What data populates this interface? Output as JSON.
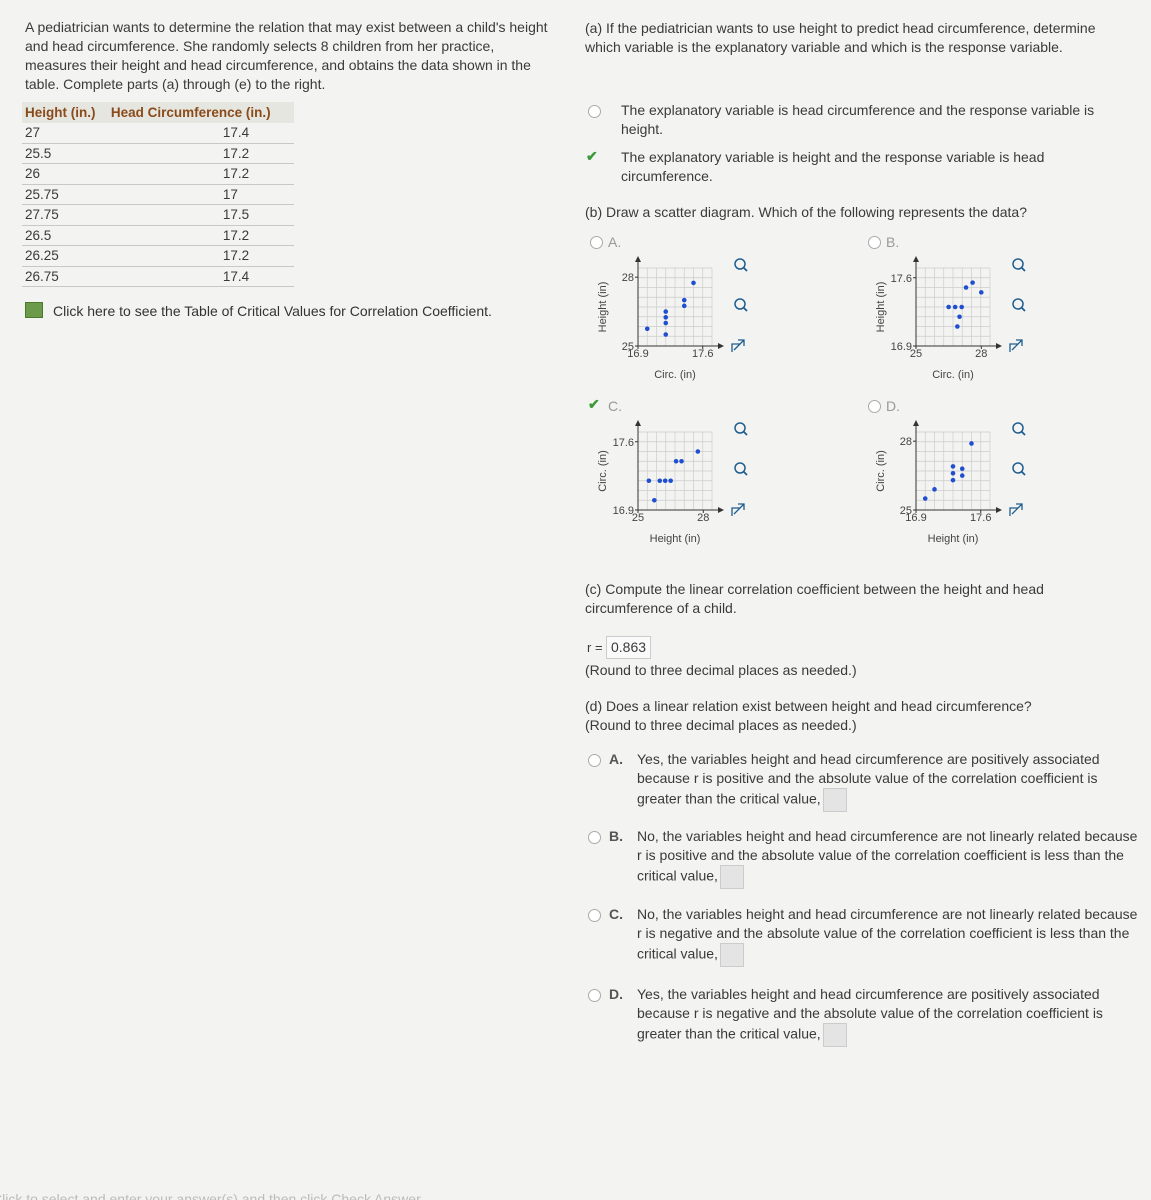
{
  "problem": {
    "text": "A pediatrician wants to determine the relation that may exist between a child's height and head circumference. She randomly selects 8 children from her practice, measures their height and head circumference, and obtains the data shown in the table. Complete parts (a) through (e) to the right.",
    "table": {
      "headers": [
        "Height (in.)",
        "Head Circumference (in.)"
      ],
      "rows": [
        [
          "27",
          "17.4"
        ],
        [
          "25.5",
          "17.2"
        ],
        [
          "26",
          "17.2"
        ],
        [
          "25.75",
          "17"
        ],
        [
          "27.75",
          "17.5"
        ],
        [
          "26.5",
          "17.2"
        ],
        [
          "26.25",
          "17.2"
        ],
        [
          "26.75",
          "17.4"
        ]
      ]
    },
    "critical_link": "Click here to see the Table of Critical Values for Correlation Coefficient."
  },
  "part_a": {
    "question": "(a) If the pediatrician wants to use height to predict head circumference, determine which variable is the explanatory variable and which is the response variable.",
    "options": [
      {
        "text": "The explanatory variable is head circumference and the response variable is height.",
        "selected": false
      },
      {
        "text": "The explanatory variable is height and the response variable is head circumference.",
        "selected": true
      }
    ]
  },
  "part_b": {
    "question": "(b) Draw a scatter diagram. Which of the following represents the data?",
    "options": [
      {
        "letter": "A.",
        "selected": false,
        "plot": {
          "x_label": "Circ. (in)",
          "y_label": "Height (in)",
          "xlim": [
            16.9,
            17.7
          ],
          "ylim": [
            25,
            28.4
          ],
          "xticks": [
            16.9,
            17.6
          ],
          "yticks": [
            25,
            28
          ],
          "points": [
            [
              17.4,
              27
            ],
            [
              17.2,
              25.5
            ],
            [
              17.2,
              26
            ],
            [
              17,
              25.75
            ],
            [
              17.5,
              27.75
            ],
            [
              17.2,
              26.5
            ],
            [
              17.2,
              26.25
            ],
            [
              17.4,
              26.75
            ]
          ]
        }
      },
      {
        "letter": "B.",
        "selected": false,
        "plot": {
          "x_label": "Circ. (in)",
          "y_label": "Height (in)",
          "xlim": [
            25,
            28.4
          ],
          "ylim": [
            16.9,
            17.7
          ],
          "xticks": [
            25,
            28
          ],
          "yticks": [
            16.9,
            17.6
          ],
          "points": [
            [
              26.5,
              17.3
            ],
            [
              26.8,
              17.3
            ],
            [
              27.1,
              17.3
            ],
            [
              27,
              17.2
            ],
            [
              27.3,
              17.5
            ],
            [
              28,
              17.45
            ],
            [
              27.6,
              17.55
            ],
            [
              26.9,
              17.1
            ]
          ]
        }
      },
      {
        "letter": "C.",
        "selected": true,
        "plot": {
          "x_label": "Height (in)",
          "y_label": "Circ. (in)",
          "xlim": [
            25,
            28.4
          ],
          "ylim": [
            16.9,
            17.7
          ],
          "xticks": [
            25,
            28
          ],
          "yticks": [
            16.9,
            17.6
          ],
          "points": [
            [
              27,
              17.4
            ],
            [
              25.5,
              17.2
            ],
            [
              26,
              17.2
            ],
            [
              25.75,
              17
            ],
            [
              27.75,
              17.5
            ],
            [
              26.5,
              17.2
            ],
            [
              26.25,
              17.2
            ],
            [
              26.75,
              17.4
            ]
          ]
        }
      },
      {
        "letter": "D.",
        "selected": false,
        "plot": {
          "x_label": "Height (in)",
          "y_label": "Circ. (in)",
          "xlim": [
            16.9,
            17.7
          ],
          "ylim": [
            25,
            28.4
          ],
          "xticks": [
            16.9,
            17.6
          ],
          "yticks": [
            25,
            28
          ],
          "points": [
            [
              17.0,
              25.5
            ],
            [
              17.1,
              25.9
            ],
            [
              17.3,
              26.3
            ],
            [
              17.3,
              26.6
            ],
            [
              17.3,
              26.9
            ],
            [
              17.4,
              26.5
            ],
            [
              17.4,
              26.8
            ],
            [
              17.5,
              27.9
            ]
          ]
        }
      }
    ]
  },
  "part_c": {
    "question": "(c) Compute the linear correlation coefficient between the height and head circumference of a child.",
    "r_label": "r =",
    "r_value": "0.863",
    "note": "(Round to three decimal places as needed.)"
  },
  "part_d": {
    "question": "(d) Does a linear relation exist between height and head circumference?",
    "note": "(Round to three decimal places as needed.)",
    "options": [
      {
        "letter": "A.",
        "text": "Yes, the variables height and head circumference are positively associated because r is positive and the absolute value of the correlation coefficient is greater than the critical value,"
      },
      {
        "letter": "B.",
        "text": "No, the variables height and head circumference are not linearly related because r is positive and the absolute value of the correlation coefficient is less than the critical value,"
      },
      {
        "letter": "C.",
        "text": "No, the variables height and head circumference are not linearly related because r is negative and the absolute value of the correlation coefficient is less than the critical value,"
      },
      {
        "letter": "D.",
        "text": "Yes, the variables height and head circumference are positively associated because r is negative and the absolute value of the correlation coefficient is greater than the critical value,"
      }
    ]
  },
  "footer": "Click to select and enter your answer(s) and then click Check Answer"
}
